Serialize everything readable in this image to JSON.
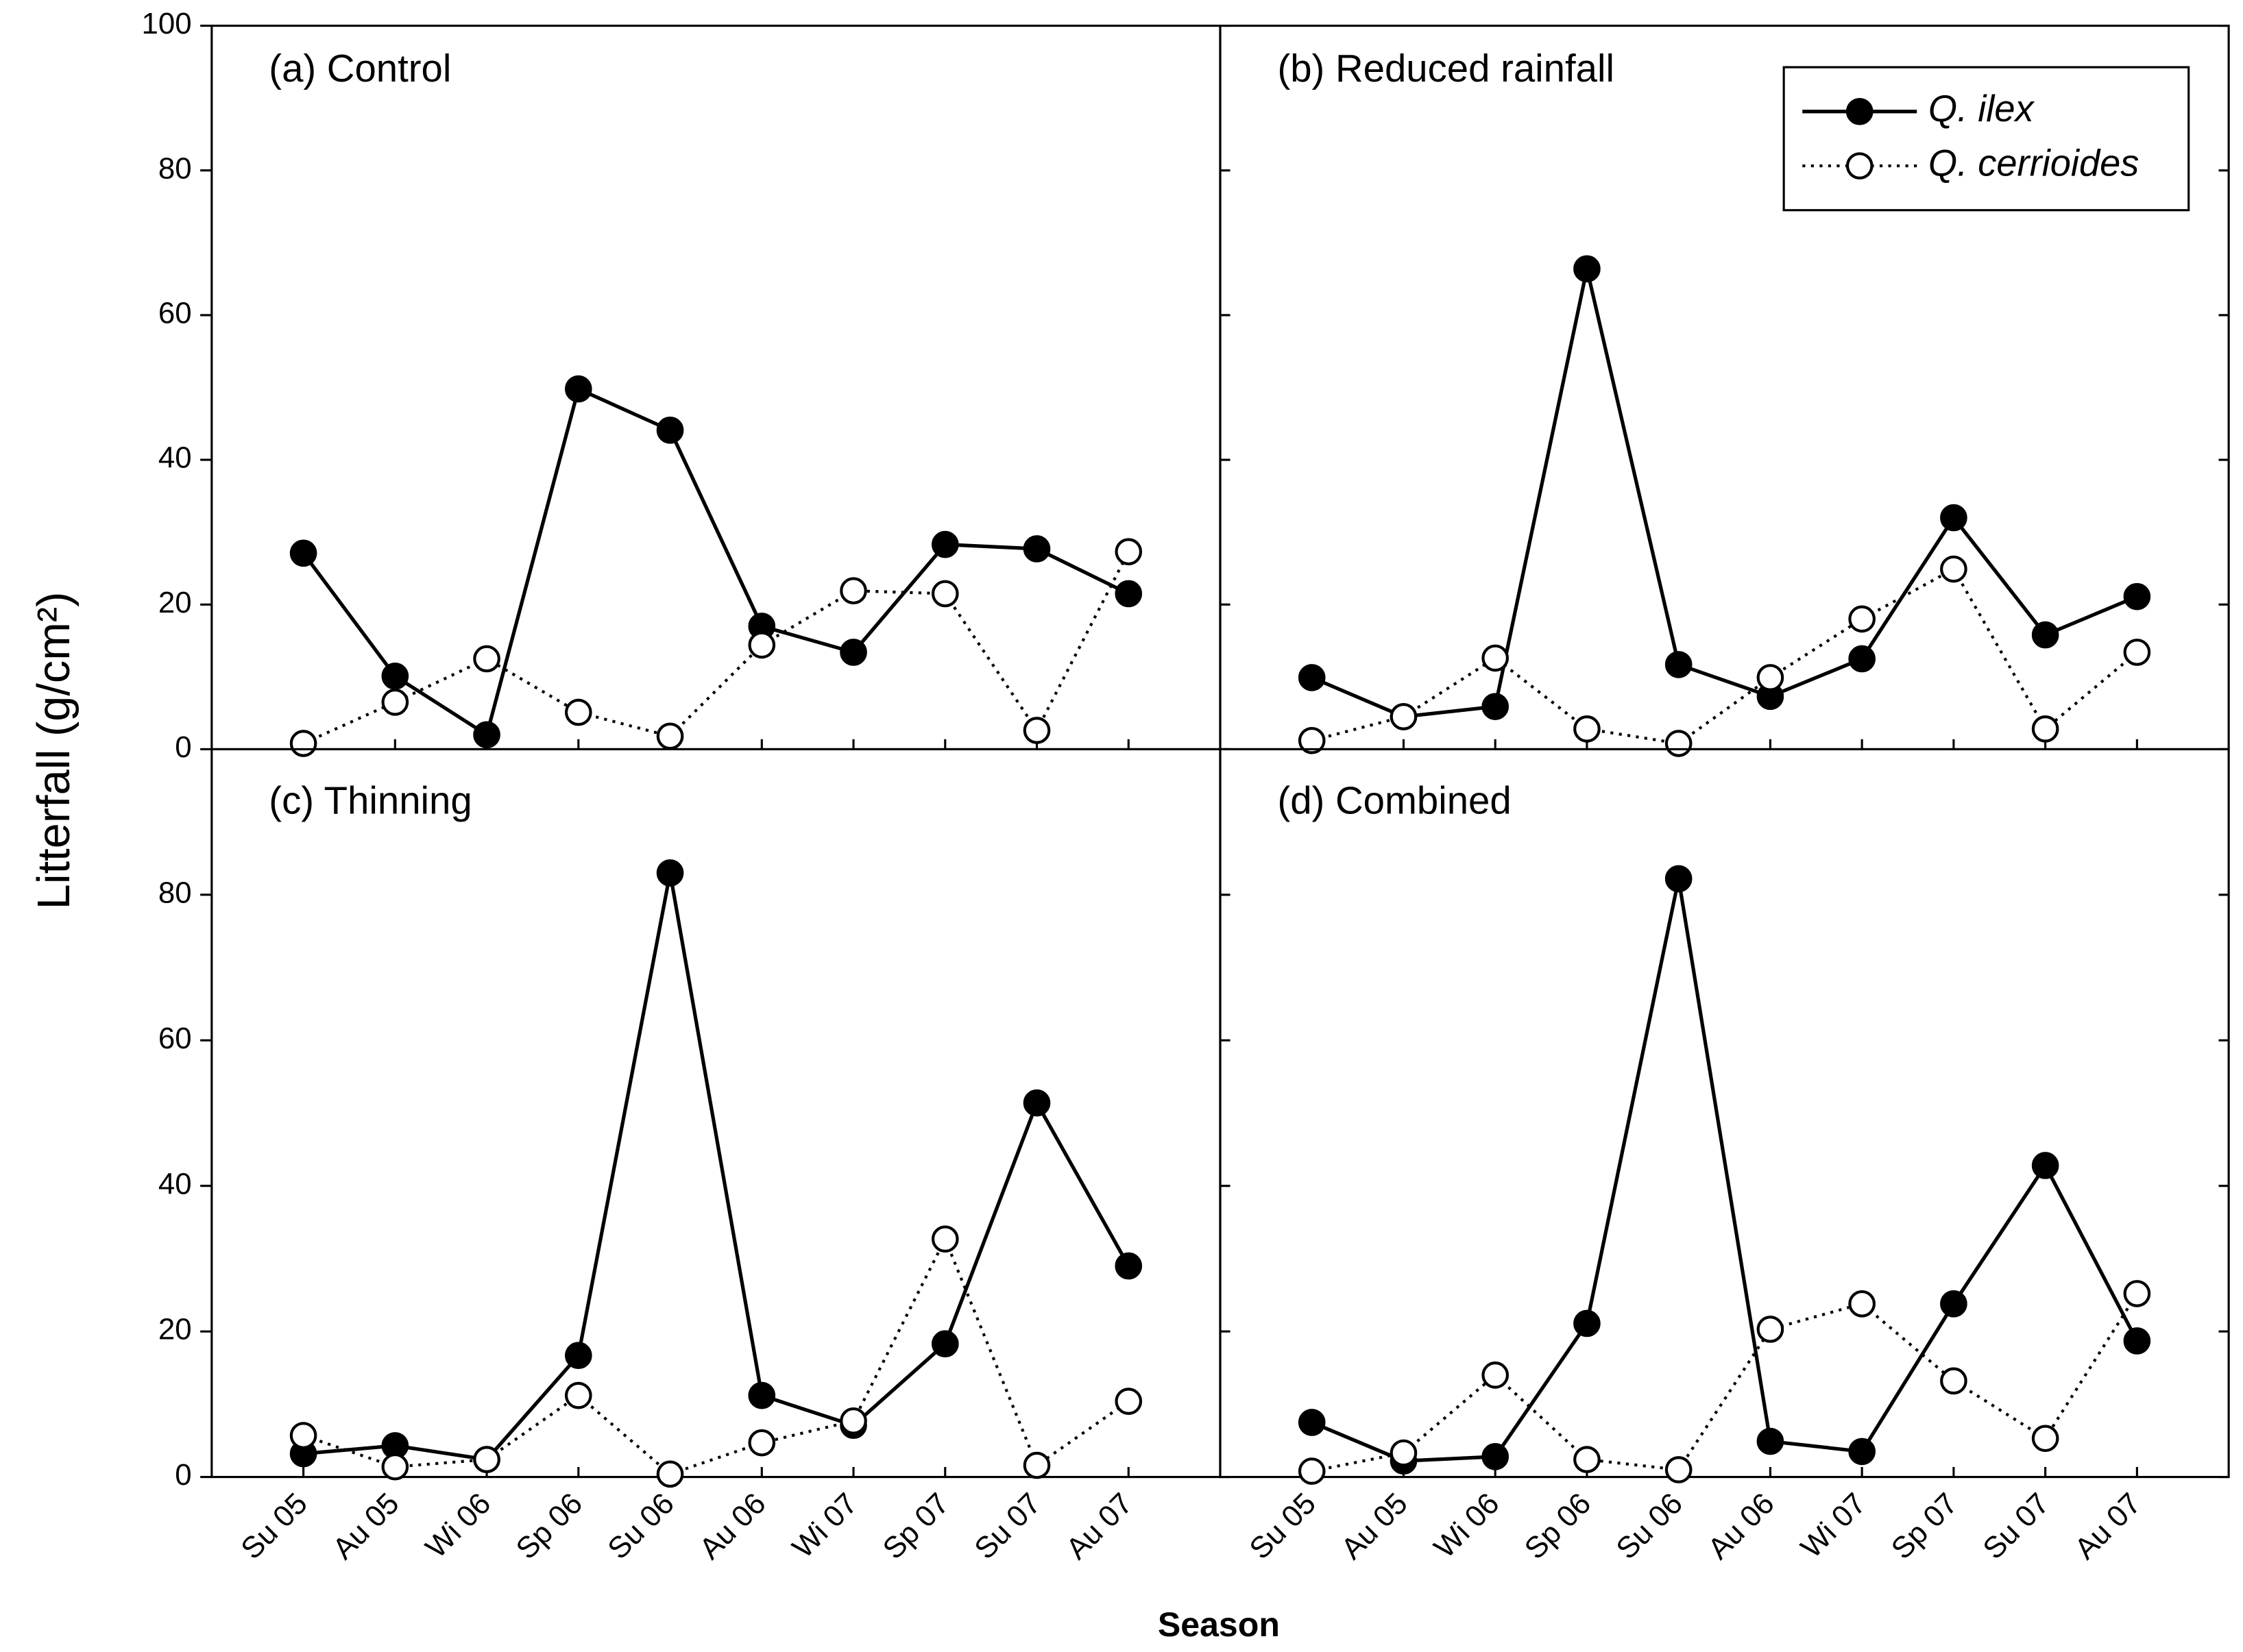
{
  "chart_data": [
    {
      "type": "line",
      "title": "(a) Control",
      "ylim": [
        0,
        100
      ],
      "yticks": [
        0,
        20,
        40,
        60,
        80,
        100
      ],
      "series": [
        {
          "color": "#000000",
          "marker": "filled",
          "linestyle": "solid",
          "values": [
            27.1,
            10.1,
            2.0,
            49.8,
            44.1,
            17.0,
            13.4,
            28.3,
            27.7,
            21.5
          ]
        },
        {
          "color": "#000000",
          "marker": "open",
          "linestyle": "dotted",
          "values": [
            0.8,
            6.5,
            12.5,
            5.1,
            1.8,
            14.4,
            21.9,
            21.5,
            2.6,
            27.3
          ]
        }
      ]
    },
    {
      "type": "line",
      "title": "(b) Reduced rainfall",
      "ylim": [
        0,
        100
      ],
      "yticks": [
        0,
        20,
        40,
        60,
        80,
        100
      ],
      "legend": "upper right",
      "series": [
        {
          "name": "Q. ilex",
          "color": "#000000",
          "marker": "filled",
          "linestyle": "solid",
          "values": [
            9.9,
            4.5,
            5.9,
            66.4,
            11.7,
            7.3,
            12.5,
            32.0,
            15.8,
            21.1
          ]
        },
        {
          "name": "Q. cerrioides",
          "color": "#000000",
          "marker": "open",
          "linestyle": "dotted",
          "values": [
            1.2,
            4.5,
            12.6,
            2.8,
            0.8,
            9.9,
            18.0,
            24.9,
            2.8,
            13.4
          ]
        }
      ]
    },
    {
      "type": "line",
      "title": "(c) Thinning",
      "ylim": [
        0,
        100
      ],
      "yticks": [
        0,
        20,
        40,
        60,
        80
      ],
      "categories": [
        "Su 05",
        "Au 05",
        "Wi 06",
        "Sp 06",
        "Su 06",
        "Au 06",
        "Wi 07",
        "Sp 07",
        "Su 07",
        "Au 07"
      ],
      "series": [
        {
          "color": "#000000",
          "marker": "filled",
          "linestyle": "solid",
          "values": [
            3.2,
            4.3,
            2.4,
            16.7,
            83.0,
            11.2,
            7.1,
            18.3,
            51.4,
            29.0
          ]
        },
        {
          "color": "#000000",
          "marker": "open",
          "linestyle": "dotted",
          "values": [
            5.7,
            1.4,
            2.4,
            11.2,
            0.4,
            4.7,
            7.7,
            32.7,
            1.6,
            10.4
          ]
        }
      ]
    },
    {
      "type": "line",
      "title": "(d) Combined",
      "ylim": [
        0,
        100
      ],
      "yticks": [
        0,
        20,
        40,
        60,
        80
      ],
      "categories": [
        "Su 05",
        "Au 05",
        "Wi 06",
        "Sp 06",
        "Su 06",
        "Au 06",
        "Wi 07",
        "Sp 07",
        "Su 07",
        "Au 07"
      ],
      "series": [
        {
          "color": "#000000",
          "marker": "filled",
          "linestyle": "solid",
          "values": [
            7.5,
            2.2,
            2.8,
            21.1,
            82.2,
            4.9,
            3.5,
            23.8,
            42.8,
            18.7
          ]
        },
        {
          "color": "#000000",
          "marker": "open",
          "linestyle": "dotted",
          "values": [
            0.8,
            3.3,
            14.0,
            2.4,
            1.0,
            20.3,
            23.8,
            13.2,
            5.3,
            25.2
          ]
        }
      ]
    }
  ],
  "x_label": "Season",
  "y_label": "Litterfall (g/cm²)"
}
